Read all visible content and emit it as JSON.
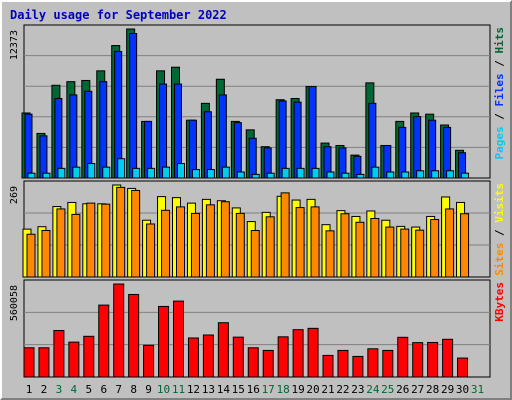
{
  "title": "Daily usage for September 2022",
  "colors": {
    "hits": "#006633",
    "files": "#0033ff",
    "pages": "#00ccee",
    "visits": "#ffff00",
    "sites": "#ff8800",
    "kbytes": "#ff0000",
    "weekend": "#006633",
    "weekday": "#000000",
    "panel": "#c0c0c0"
  },
  "chart_data": [
    {
      "type": "bar",
      "panel": "hits-files-pages",
      "axis_label": "12373",
      "legend": [
        "Pages",
        "Files",
        "Hits"
      ],
      "x": [
        1,
        2,
        3,
        4,
        5,
        6,
        7,
        8,
        9,
        10,
        11,
        12,
        13,
        14,
        15,
        16,
        17,
        18,
        19,
        20,
        21,
        22,
        23,
        24,
        25,
        26,
        27,
        28,
        29,
        30,
        31
      ],
      "series": [
        {
          "name": "Hits",
          "values": [
            5400,
            3700,
            7700,
            8000,
            8100,
            8900,
            11000,
            12373,
            4700,
            8900,
            9200,
            4800,
            6200,
            8200,
            4700,
            4000,
            2600,
            6500,
            6600,
            7600,
            2900,
            2700,
            1900,
            7900,
            2700,
            4700,
            5400,
            5300,
            4400,
            2300,
            0
          ]
        },
        {
          "name": "Files",
          "values": [
            5300,
            3500,
            6600,
            6900,
            7200,
            8000,
            10500,
            12000,
            4700,
            7800,
            7800,
            4800,
            5500,
            6900,
            4600,
            3300,
            2500,
            6400,
            6300,
            7600,
            2600,
            2500,
            1800,
            6200,
            2700,
            4200,
            5100,
            4800,
            4200,
            2100,
            0
          ]
        },
        {
          "name": "Pages",
          "values": [
            400,
            400,
            800,
            900,
            1200,
            900,
            1600,
            800,
            800,
            900,
            1200,
            700,
            700,
            900,
            500,
            300,
            400,
            800,
            800,
            800,
            500,
            400,
            300,
            900,
            500,
            500,
            600,
            600,
            600,
            400,
            0
          ]
        }
      ]
    },
    {
      "type": "bar",
      "panel": "visits-sites",
      "axis_label": "269",
      "legend": [
        "Sites",
        "Visits"
      ],
      "x": [
        1,
        2,
        3,
        4,
        5,
        6,
        7,
        8,
        9,
        10,
        11,
        12,
        13,
        14,
        15,
        16,
        17,
        18,
        19,
        20,
        21,
        22,
        23,
        24,
        25,
        26,
        27,
        28,
        29,
        30,
        31
      ],
      "series": [
        {
          "name": "Visits",
          "values": [
            140,
            147,
            206,
            218,
            214,
            214,
            269,
            259,
            166,
            235,
            232,
            216,
            227,
            223,
            202,
            162,
            189,
            236,
            225,
            227,
            153,
            194,
            177,
            193,
            166,
            148,
            146,
            177,
            234,
            218,
            0
          ]
        },
        {
          "name": "Sites",
          "values": [
            125,
            136,
            199,
            183,
            216,
            213,
            262,
            253,
            155,
            195,
            205,
            186,
            211,
            220,
            186,
            136,
            176,
            246,
            203,
            205,
            135,
            185,
            160,
            171,
            146,
            140,
            137,
            168,
            199,
            185,
            0
          ]
        }
      ]
    },
    {
      "type": "bar",
      "panel": "kbytes",
      "axis_label": "560058",
      "legend": [
        "KBytes"
      ],
      "x": [
        1,
        2,
        3,
        4,
        5,
        6,
        7,
        8,
        9,
        10,
        11,
        12,
        13,
        14,
        15,
        16,
        17,
        18,
        19,
        20,
        21,
        22,
        23,
        24,
        25,
        26,
        27,
        28,
        29,
        30,
        31
      ],
      "series": [
        {
          "name": "KBytes",
          "values": [
            176000,
            176000,
            280000,
            210000,
            245000,
            433000,
            560058,
            497000,
            191000,
            425000,
            457000,
            235000,
            253000,
            327000,
            240000,
            176000,
            160000,
            242000,
            285000,
            293000,
            130000,
            160000,
            124000,
            170000,
            160000,
            239000,
            207000,
            208000,
            227000,
            114000,
            0
          ]
        }
      ]
    }
  ]
}
